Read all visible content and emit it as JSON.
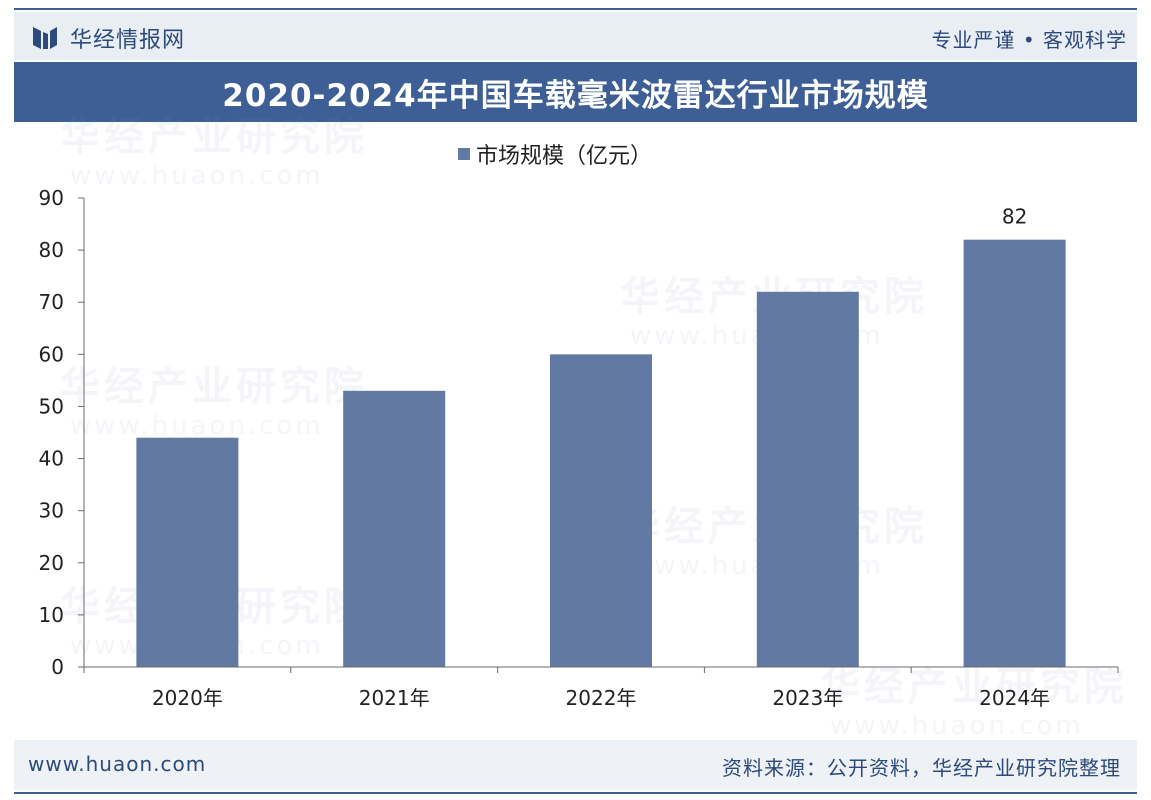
{
  "theme": {
    "accent": "#3d5f95",
    "bar_color": "#6279a3",
    "header_bg": "#e9edf4",
    "footer_bg": "#eef1f6"
  },
  "header": {
    "logo_icon": "huajing-logo-icon",
    "brand": "华经情报网",
    "slogan": "专业严谨 • 客观科学"
  },
  "chart_data": {
    "type": "bar",
    "title": "2020-2024年中国车载毫米波雷达行业市场规模",
    "categories": [
      "2020年",
      "2021年",
      "2022年",
      "2023年",
      "2024年"
    ],
    "series": [
      {
        "name": "市场规模（亿元）",
        "values": [
          44,
          53,
          60,
          72,
          82
        ]
      }
    ],
    "data_labels": [
      null,
      null,
      null,
      null,
      "82"
    ],
    "ylim": [
      0,
      90
    ],
    "yticks": [
      "0",
      "10",
      "20",
      "30",
      "40",
      "50",
      "60",
      "70",
      "80",
      "90"
    ],
    "legend_position": "top-center",
    "grid": false
  },
  "watermarks": [
    "华经产业研究院",
    "www.huaon.com"
  ],
  "footer": {
    "url": "www.huaon.com",
    "source": "资料来源：公开资料，华经产业研究院整理"
  }
}
